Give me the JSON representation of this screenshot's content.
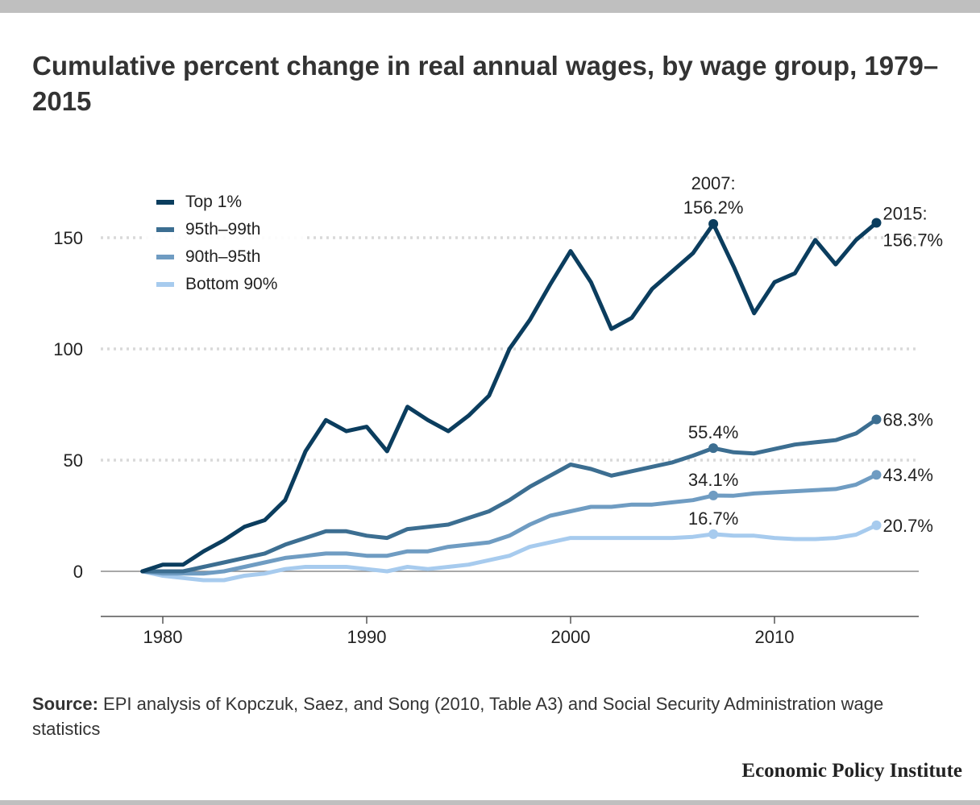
{
  "title": "Cumulative percent change in real annual wages, by wage group, 1979–2015",
  "source": {
    "label": "Source:",
    "text": "EPI analysis of Kopczuk, Saez, and Song (2010, Table A3) and Social Security Administration wage statistics"
  },
  "brand": "Economic Policy Institute",
  "chart_data": {
    "type": "line",
    "title": "Cumulative percent change in real annual wages, by wage group, 1979–2015",
    "xlabel": "",
    "ylabel": "",
    "xlim": [
      1977,
      2017
    ],
    "ylim": [
      -20,
      175
    ],
    "x_ticks": [
      1980,
      1990,
      2000,
      2010
    ],
    "y_ticks": [
      0,
      50,
      100,
      150
    ],
    "grid": "horizontal dotted",
    "legend_position": "top-left",
    "x": [
      1979,
      1980,
      1981,
      1982,
      1983,
      1984,
      1985,
      1986,
      1987,
      1988,
      1989,
      1990,
      1991,
      1992,
      1993,
      1994,
      1995,
      1996,
      1997,
      1998,
      1999,
      2000,
      2001,
      2002,
      2003,
      2004,
      2005,
      2006,
      2007,
      2008,
      2009,
      2010,
      2011,
      2012,
      2013,
      2014,
      2015
    ],
    "series": [
      {
        "name": "Top 1%",
        "color": "#0b3d5e",
        "values": [
          0,
          3,
          3,
          9,
          14,
          20,
          23,
          32,
          54,
          68,
          63,
          65,
          54,
          74,
          68,
          63,
          70,
          79,
          100,
          113,
          129,
          144,
          130,
          109,
          114,
          127,
          135,
          143,
          156.2,
          137,
          116,
          130,
          134,
          149,
          138,
          149,
          156.7
        ]
      },
      {
        "name": "95th–99th",
        "color": "#3c6e91",
        "values": [
          0,
          0,
          0,
          2,
          4,
          6,
          8,
          12,
          15,
          18,
          18,
          16,
          15,
          19,
          20,
          21,
          24,
          27,
          32,
          38,
          43,
          48,
          46,
          43,
          45,
          47,
          49,
          52,
          55.4,
          53.5,
          53,
          55,
          57,
          58,
          59,
          62,
          68.3
        ]
      },
      {
        "name": "90th–95th",
        "color": "#6f9cc2",
        "values": [
          0,
          -1,
          -1,
          -1,
          0,
          2,
          4,
          6,
          7,
          8,
          8,
          7,
          7,
          9,
          9,
          11,
          12,
          13,
          16,
          21,
          25,
          27,
          29,
          29,
          30,
          30,
          31,
          32,
          34.1,
          34,
          35,
          35.5,
          36,
          36.5,
          37,
          39,
          43.4
        ]
      },
      {
        "name": "Bottom 90%",
        "color": "#a7cbee",
        "values": [
          0,
          -2,
          -3,
          -4,
          -4,
          -2,
          -1,
          1,
          2,
          2,
          2,
          1,
          0,
          2,
          1,
          2,
          3,
          5,
          7,
          11,
          13,
          15,
          15,
          15,
          15,
          15,
          15,
          15.5,
          16.7,
          16,
          16,
          15,
          14.5,
          14.5,
          15,
          16.5,
          20.7
        ]
      }
    ],
    "annotations": [
      {
        "series": "Top 1%",
        "x": 2007,
        "y": 156.2,
        "text": "2007:",
        "text2": "156.2%"
      },
      {
        "series": "Top 1%",
        "x": 2015,
        "y": 156.7,
        "text": "2015:",
        "text2": "156.7%"
      },
      {
        "series": "95th–99th",
        "x": 2007,
        "y": 55.4,
        "text": "55.4%"
      },
      {
        "series": "95th–99th",
        "x": 2015,
        "y": 68.3,
        "text": "68.3%"
      },
      {
        "series": "90th–95th",
        "x": 2007,
        "y": 34.1,
        "text": "34.1%"
      },
      {
        "series": "90th–95th",
        "x": 2015,
        "y": 43.4,
        "text": "43.4%"
      },
      {
        "series": "Bottom 90%",
        "x": 2007,
        "y": 16.7,
        "text": "16.7%"
      },
      {
        "series": "Bottom 90%",
        "x": 2015,
        "y": 20.7,
        "text": "20.7%"
      }
    ]
  }
}
